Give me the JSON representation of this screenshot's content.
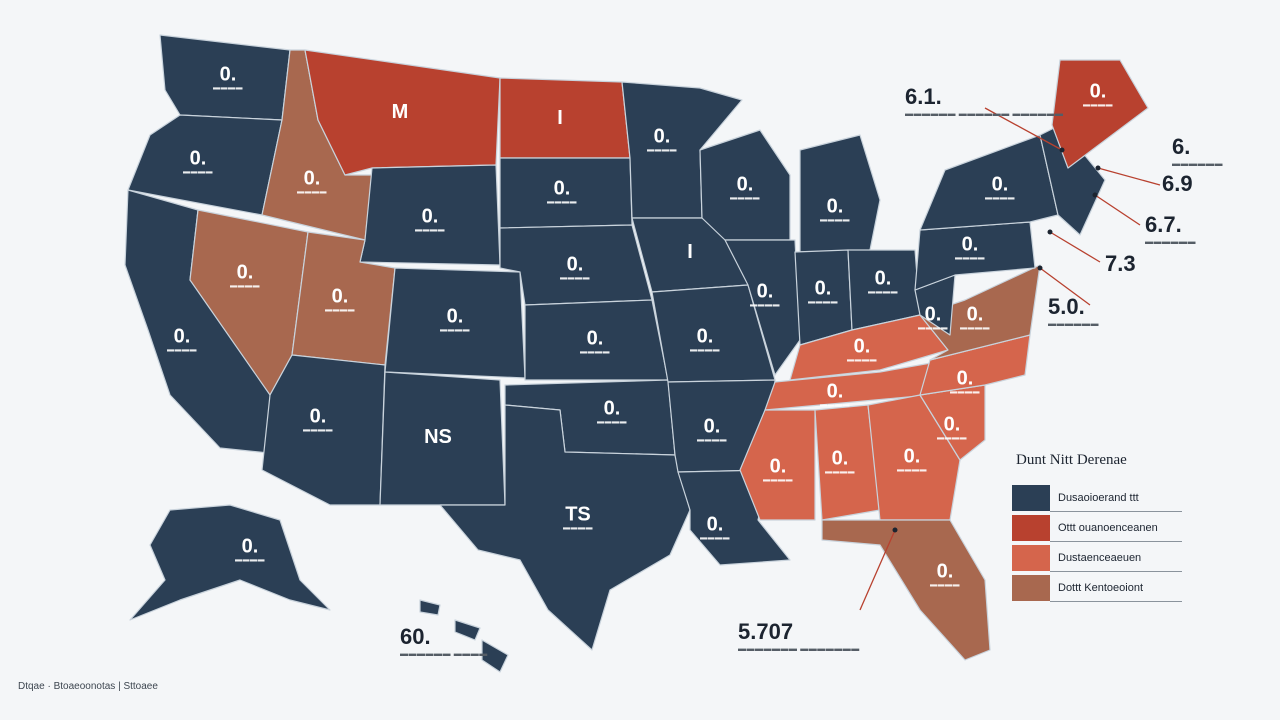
{
  "colors": {
    "navy": "#2b3f55",
    "red": "#b8412f",
    "coral": "#d5654c",
    "salmon": "#c7705a",
    "brown": "#a8684f",
    "background": "#f4f6f8"
  },
  "states": [
    {
      "id": "WA",
      "label": "0.",
      "sub": "▬▬▬▬",
      "fill": "navy"
    },
    {
      "id": "OR",
      "label": "0.",
      "sub": "▬▬▬▬",
      "fill": "navy"
    },
    {
      "id": "CA",
      "label": "0.",
      "sub": "▬▬▬▬",
      "fill": "navy"
    },
    {
      "id": "ID",
      "label": "0.",
      "sub": "▬▬▬▬",
      "fill": "brown"
    },
    {
      "id": "NV",
      "label": "0.",
      "sub": "▬▬▬▬",
      "fill": "brown"
    },
    {
      "id": "MT",
      "label": "M",
      "sub": "",
      "fill": "red"
    },
    {
      "id": "WY",
      "label": "0.",
      "sub": "▬▬▬▬",
      "fill": "navy"
    },
    {
      "id": "UT",
      "label": "0.",
      "sub": "▬▬▬▬",
      "fill": "brown"
    },
    {
      "id": "AZ",
      "label": "0.",
      "sub": "▬▬▬▬",
      "fill": "navy"
    },
    {
      "id": "CO",
      "label": "0.",
      "sub": "▬▬▬▬",
      "fill": "navy"
    },
    {
      "id": "NM",
      "label": "NS",
      "sub": "",
      "fill": "navy"
    },
    {
      "id": "ND",
      "label": "I",
      "sub": "",
      "fill": "red"
    },
    {
      "id": "SD",
      "label": "0.",
      "sub": "▬▬▬▬",
      "fill": "navy"
    },
    {
      "id": "NE",
      "label": "0.",
      "sub": "▬▬▬▬",
      "fill": "navy"
    },
    {
      "id": "KS",
      "label": "0.",
      "sub": "▬▬▬▬",
      "fill": "navy"
    },
    {
      "id": "OK",
      "label": "0.",
      "sub": "▬▬▬▬",
      "fill": "navy"
    },
    {
      "id": "TX",
      "label": "TS",
      "sub": "▬▬▬▬",
      "fill": "navy"
    },
    {
      "id": "MN",
      "label": "0.",
      "sub": "▬▬▬▬",
      "fill": "navy"
    },
    {
      "id": "IA",
      "label": "I",
      "sub": "",
      "fill": "navy"
    },
    {
      "id": "MO",
      "label": "0.",
      "sub": "▬▬▬▬",
      "fill": "navy"
    },
    {
      "id": "AR",
      "label": "0.",
      "sub": "▬▬▬▬",
      "fill": "navy"
    },
    {
      "id": "LA",
      "label": "0.",
      "sub": "▬▬▬▬",
      "fill": "navy"
    },
    {
      "id": "WI",
      "label": "0.",
      "sub": "▬▬▬▬",
      "fill": "navy"
    },
    {
      "id": "IL",
      "label": "0.",
      "sub": "▬▬▬▬",
      "fill": "navy"
    },
    {
      "id": "MI",
      "label": "0.",
      "sub": "▬▬▬▬",
      "fill": "navy"
    },
    {
      "id": "IN",
      "label": "0.",
      "sub": "▬▬▬▬",
      "fill": "navy"
    },
    {
      "id": "OH",
      "label": "0.",
      "sub": "▬▬▬▬",
      "fill": "navy"
    },
    {
      "id": "KY",
      "label": "0.",
      "sub": "▬▬▬▬",
      "fill": "coral"
    },
    {
      "id": "TN",
      "label": "0.",
      "sub": "▬▬▬▬",
      "fill": "coral"
    },
    {
      "id": "MS",
      "label": "0.",
      "sub": "▬▬▬▬",
      "fill": "coral"
    },
    {
      "id": "AL",
      "label": "0.",
      "sub": "▬▬▬▬",
      "fill": "coral"
    },
    {
      "id": "GA",
      "label": "0.",
      "sub": "▬▬▬▬",
      "fill": "coral"
    },
    {
      "id": "FL",
      "label": "0.",
      "sub": "▬▬▬▬",
      "fill": "brown"
    },
    {
      "id": "SC",
      "label": "0.",
      "sub": "▬▬▬▬",
      "fill": "coral"
    },
    {
      "id": "NC",
      "label": "0.",
      "sub": "▬▬▬▬",
      "fill": "coral"
    },
    {
      "id": "VA",
      "label": "0.",
      "sub": "▬▬▬▬",
      "fill": "brown"
    },
    {
      "id": "WV",
      "label": "0.",
      "sub": "▬▬▬▬",
      "fill": "navy"
    },
    {
      "id": "PA",
      "label": "0.",
      "sub": "▬▬▬▬",
      "fill": "navy"
    },
    {
      "id": "NY",
      "label": "0.",
      "sub": "▬▬▬▬",
      "fill": "navy"
    },
    {
      "id": "NE-states",
      "label": "",
      "sub": "",
      "fill": "navy"
    },
    {
      "id": "ME",
      "label": "0.",
      "sub": "▬▬▬▬",
      "fill": "red"
    },
    {
      "id": "AK",
      "label": "0.",
      "sub": "▬▬▬▬",
      "fill": "navy"
    },
    {
      "id": "HI",
      "label": "",
      "sub": "",
      "fill": "navy"
    }
  ],
  "callouts": [
    {
      "id": "callout-ne1",
      "value": "6.1.",
      "sub": "▬▬▬▬▬▬ ▬▬▬▬▬▬ ▬▬▬▬▬▬"
    },
    {
      "id": "callout-ne2",
      "value": "6.",
      "sub": "▬▬▬▬▬▬"
    },
    {
      "id": "callout-ne3",
      "value": "6.9",
      "sub": ""
    },
    {
      "id": "callout-ne4",
      "value": "6.7.",
      "sub": "▬▬▬▬▬▬"
    },
    {
      "id": "callout-ne5",
      "value": "7.3",
      "sub": ""
    },
    {
      "id": "callout-ne6",
      "value": "5.0.",
      "sub": "▬▬▬▬▬▬"
    },
    {
      "id": "callout-fl",
      "value": "5.707",
      "sub": "▬▬▬▬▬▬▬ ▬▬▬▬▬▬▬"
    },
    {
      "id": "callout-hi",
      "value": "60.",
      "sub": "▬▬▬▬▬▬ ▬▬▬▬"
    }
  ],
  "legend": {
    "title": "Dunt Nitt Derenae",
    "items": [
      {
        "label": "Dusaoioerand ttt",
        "color": "navy"
      },
      {
        "label": "Ottt ouanoenceanen",
        "color": "red"
      },
      {
        "label": "Dustaenceaeuen",
        "color": "coral"
      },
      {
        "label": "Dottt Kentoeoiont",
        "color": "brown"
      }
    ]
  },
  "footer": "Dtqae · Btoaeoonotas | Sttoaee"
}
